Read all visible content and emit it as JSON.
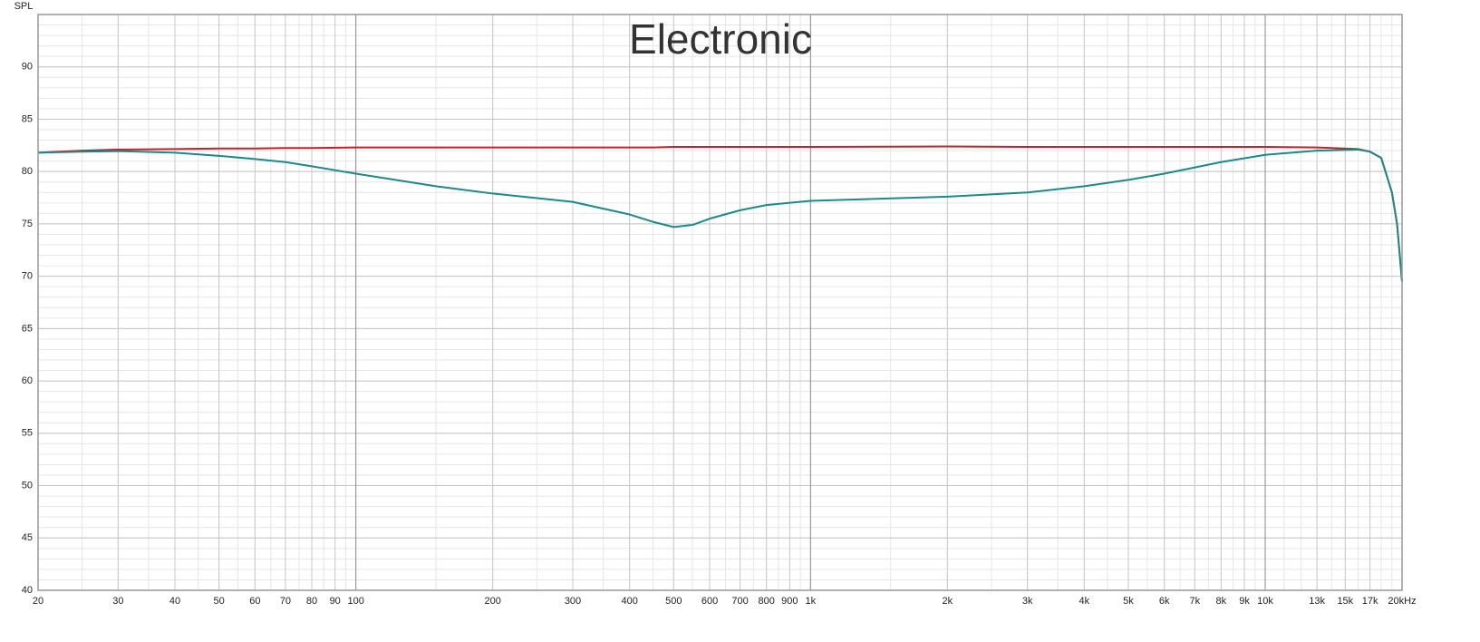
{
  "chart_data": {
    "type": "line",
    "title": "Electronic",
    "y_label": "SPL",
    "xscale": "log",
    "grid": true,
    "xlim": [
      20,
      20000
    ],
    "ylim": [
      40,
      95
    ],
    "yticks": [
      40,
      45,
      50,
      55,
      60,
      65,
      70,
      75,
      80,
      85,
      90
    ],
    "xticks": [
      20,
      30,
      40,
      50,
      60,
      70,
      80,
      90,
      100,
      200,
      300,
      400,
      500,
      600,
      700,
      800,
      900,
      {
        "value": 1000,
        "label": "1k"
      },
      {
        "value": 2000,
        "label": "2k"
      },
      {
        "value": 3000,
        "label": "3k"
      },
      {
        "value": 4000,
        "label": "4k"
      },
      {
        "value": 5000,
        "label": "5k"
      },
      {
        "value": 6000,
        "label": "6k"
      },
      {
        "value": 7000,
        "label": "7k"
      },
      {
        "value": 8000,
        "label": "8k"
      },
      {
        "value": 9000,
        "label": "9k"
      },
      {
        "value": 10000,
        "label": "10k"
      },
      {
        "value": 13000,
        "label": "13k"
      },
      {
        "value": 15000,
        "label": "15k"
      },
      {
        "value": 17000,
        "label": "17k"
      },
      {
        "value": 20000,
        "label": "20kHz"
      }
    ],
    "x": [
      20,
      25,
      30,
      40,
      50,
      60,
      70,
      80,
      100,
      150,
      200,
      300,
      400,
      450,
      500,
      550,
      600,
      700,
      800,
      1000,
      2000,
      3000,
      4000,
      5000,
      6000,
      8000,
      10000,
      13000,
      16000,
      17000,
      18000,
      19000,
      19500,
      20000
    ],
    "series": [
      {
        "color": "#c8202a",
        "values": [
          81.8,
          82.0,
          82.1,
          82.15,
          82.2,
          82.2,
          82.25,
          82.25,
          82.3,
          82.3,
          82.3,
          82.3,
          82.3,
          82.3,
          82.35,
          82.35,
          82.35,
          82.35,
          82.35,
          82.35,
          82.4,
          82.35,
          82.35,
          82.35,
          82.35,
          82.35,
          82.35,
          82.3,
          82.15,
          81.9,
          81.3,
          78.0,
          75.0,
          69.5
        ]
      },
      {
        "color": "#1a8a8a",
        "values": [
          81.8,
          81.9,
          81.95,
          81.8,
          81.5,
          81.2,
          80.9,
          80.5,
          79.8,
          78.6,
          77.9,
          77.1,
          75.9,
          75.2,
          74.7,
          74.9,
          75.5,
          76.3,
          76.8,
          77.2,
          77.6,
          78.0,
          78.6,
          79.2,
          79.8,
          80.9,
          81.6,
          82.0,
          82.1,
          81.9,
          81.3,
          78.0,
          75.0,
          69.5
        ]
      }
    ]
  }
}
